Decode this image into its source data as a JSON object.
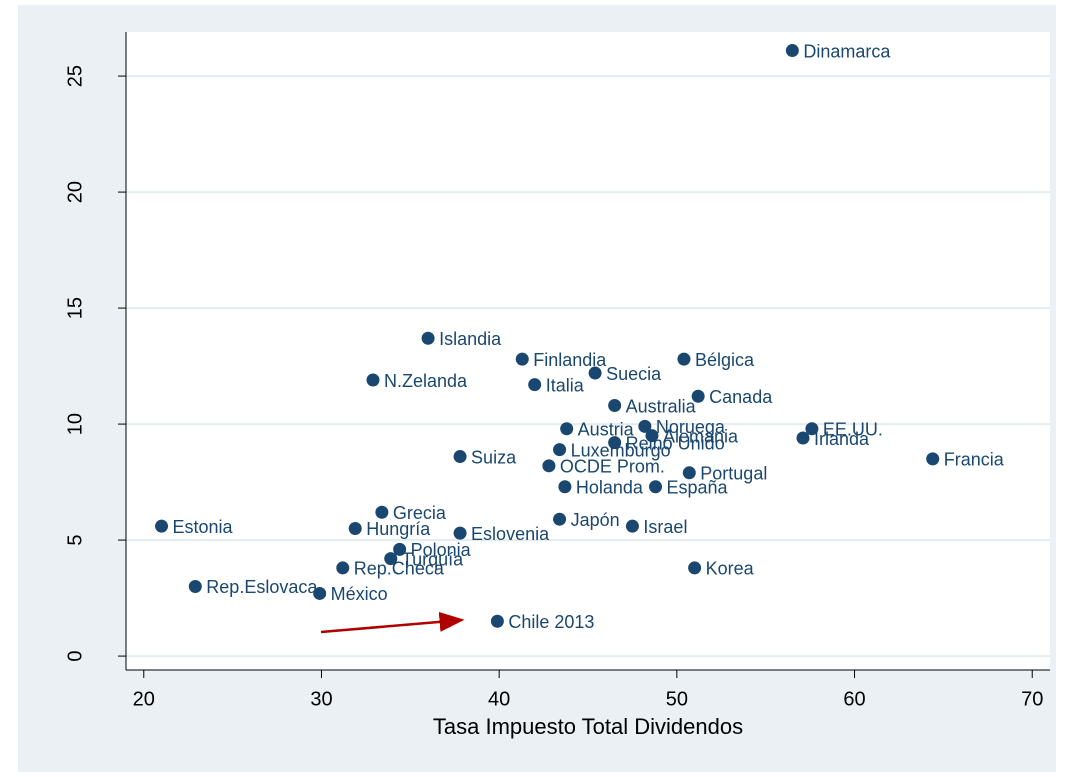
{
  "chart_data": {
    "type": "scatter",
    "x_label": "Tasa Impuesto Total Dividendos",
    "color": "#1a476f",
    "grid": true,
    "xlim": [
      19,
      71
    ],
    "xticks": [
      20,
      30,
      40,
      50,
      60,
      70
    ],
    "ylim": [
      -0.6,
      26.9
    ],
    "yticks": [
      0,
      5,
      10,
      15,
      20,
      25
    ],
    "labels": [
      "Dinamarca",
      "Islandia",
      "Finlandia",
      "Bélgica",
      "Suecia",
      "N.Zelanda",
      "Italia",
      "Canada",
      "Australia",
      "EE.UU.",
      "Noruega",
      "Austria",
      "Alemania",
      "Irlanda",
      "Reino Unido",
      "Luxemburgo",
      "Suiza",
      "Francia",
      "OCDE Prom.",
      "Portugal",
      "Holanda",
      "España",
      "Grecia",
      "Japón",
      "Estonia",
      "Hungría",
      "Israel",
      "Eslovenia",
      "Polonia",
      "Turquía",
      "Rep.Checa",
      "Korea",
      "Rep.Eslovaca",
      "México",
      "Chile 2013"
    ],
    "x": [
      56.5,
      36.0,
      41.3,
      50.4,
      45.4,
      32.9,
      42.0,
      51.2,
      46.5,
      57.6,
      48.2,
      43.8,
      48.6,
      57.1,
      46.5,
      43.4,
      37.8,
      64.4,
      42.8,
      50.7,
      43.7,
      48.8,
      33.4,
      43.4,
      21.0,
      31.9,
      47.5,
      37.8,
      34.4,
      33.9,
      31.2,
      51.0,
      22.9,
      29.9,
      39.9
    ],
    "values": [
      26.1,
      13.7,
      12.8,
      12.8,
      12.2,
      11.9,
      11.7,
      11.2,
      10.8,
      9.8,
      9.9,
      9.8,
      9.5,
      9.4,
      9.2,
      8.9,
      8.6,
      8.5,
      8.2,
      7.9,
      7.3,
      7.3,
      6.2,
      5.9,
      5.6,
      5.5,
      5.6,
      5.3,
      4.6,
      4.2,
      3.8,
      3.8,
      3.0,
      2.7,
      1.5
    ]
  }
}
